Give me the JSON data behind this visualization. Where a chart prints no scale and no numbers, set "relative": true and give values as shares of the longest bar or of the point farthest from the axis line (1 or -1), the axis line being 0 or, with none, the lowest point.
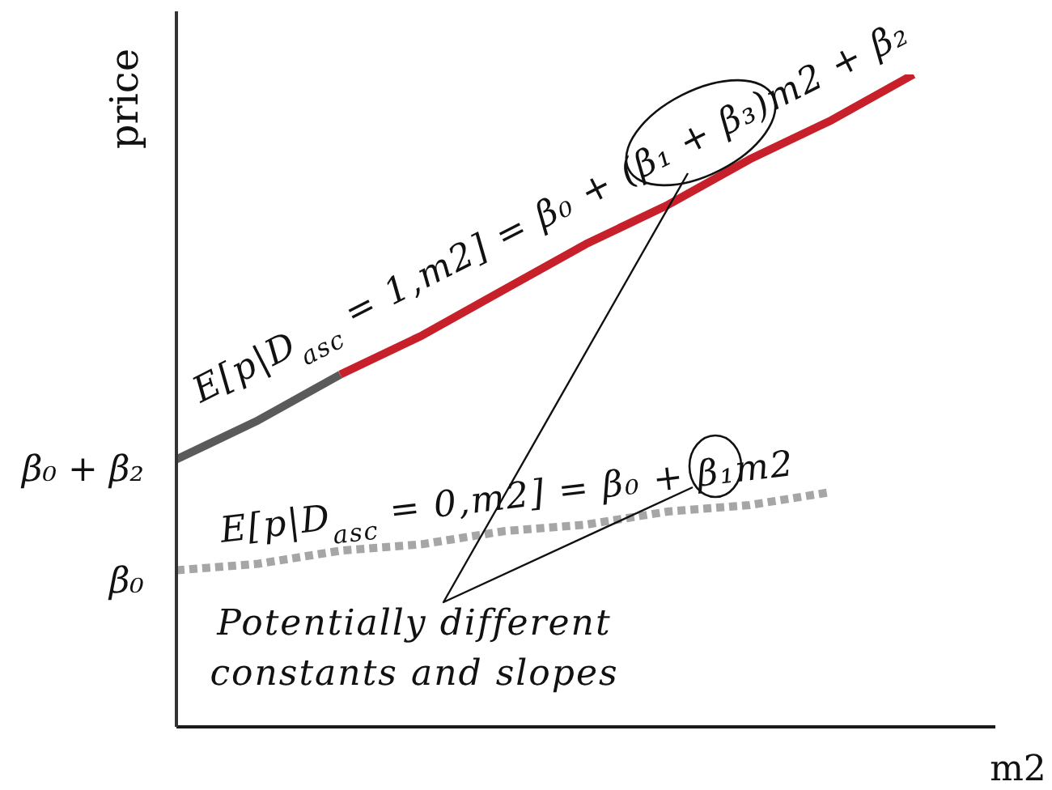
{
  "chart_data": {
    "type": "line",
    "relative": true,
    "xlabel": "m2",
    "ylabel": "price",
    "line_style": "solid",
    "categories": [
      null,
      null,
      null,
      null,
      null,
      null,
      null,
      null,
      null,
      null,
      null
    ],
    "series": [
      {
        "color": "#5a5a5a",
        "values": [
          0.41,
          0.47,
          0.54,
          null,
          null,
          null,
          null,
          null,
          null,
          null,
          null
        ]
      },
      {
        "color": "#c8202a",
        "values": [
          null,
          null,
          0.54,
          0.6,
          0.67,
          0.74,
          0.8,
          0.87,
          0.93,
          1,
          null
        ]
      },
      {
        "color": "#a6a6a6",
        "line_style": "dotted",
        "values": [
          0.24,
          0.25,
          0.27,
          0.28,
          0.3,
          0.31,
          0.33,
          0.34,
          0.36,
          null,
          null
        ]
      }
    ],
    "annotations": [
      "β₀ + β₂",
      "β₀",
      "E[p|D$_{asc}$ = 1,m2] = β₀ + (β₁ + β₃)m2 + β₂",
      "E[p|D$_{asc}$ = 0,m2] = β₀ + β₁m2",
      "Potentially different\nconstants and slopes"
    ]
  }
}
